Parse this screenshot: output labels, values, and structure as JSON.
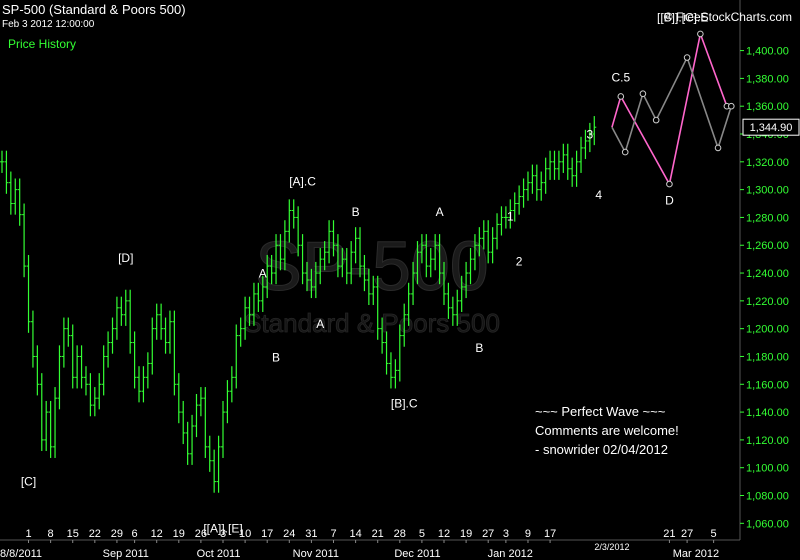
{
  "header": {
    "title": "SP-500 (Standard & Poors 500)",
    "timestamp": "Feb 3 2012 12:00:00",
    "price_history": "Price History",
    "copyright": "© FreeStockCharts.com"
  },
  "watermark": {
    "symbol": "SP-500",
    "name": "Standard & Poors 500"
  },
  "note": {
    "lines": [
      "~~~ Perfect Wave ~~~",
      "Comments are welcome!",
      "- snowrider  02/04/2012"
    ]
  },
  "colors": {
    "background": "#000000",
    "candle": "#33ff33",
    "projection_pink": "#ff66cc",
    "projection_gray": "#888888",
    "text": "#ffffff"
  },
  "chart_data": {
    "type": "bar",
    "yaxis": {
      "ticks": [
        1060,
        1080,
        1100,
        1120,
        1140,
        1160,
        1180,
        1200,
        1220,
        1240,
        1260,
        1280,
        1300,
        1320,
        1340,
        1360,
        1380,
        1400
      ],
      "tick_labels": [
        "1,060.00",
        "1,080.00",
        "1,100.00",
        "1,120.00",
        "1,140.00",
        "1,160.00",
        "1,180.00",
        "1,200.00",
        "1,220.00",
        "1,240.00",
        "1,260.00",
        "1,280.00",
        "1,300.00",
        "1,320.00",
        "1,340.00",
        "1,360.00",
        "1,380.00",
        "1,400.00"
      ],
      "range": [
        1048,
        1422
      ]
    },
    "current_price": {
      "value": 1344.9,
      "label": "1,344.90"
    },
    "xaxis": {
      "day_ticks": [
        {
          "label": "1",
          "i": 6
        },
        {
          "label": "8",
          "i": 11
        },
        {
          "label": "15",
          "i": 16
        },
        {
          "label": "22",
          "i": 21
        },
        {
          "label": "29",
          "i": 26
        },
        {
          "label": "6",
          "i": 30
        },
        {
          "label": "12",
          "i": 35
        },
        {
          "label": "19",
          "i": 40
        },
        {
          "label": "26",
          "i": 45
        },
        {
          "label": "3",
          "i": 50
        },
        {
          "label": "10",
          "i": 55
        },
        {
          "label": "17",
          "i": 60
        },
        {
          "label": "24",
          "i": 65
        },
        {
          "label": "31",
          "i": 70
        },
        {
          "label": "7",
          "i": 75
        },
        {
          "label": "14",
          "i": 80
        },
        {
          "label": "21",
          "i": 85
        },
        {
          "label": "28",
          "i": 90
        },
        {
          "label": "5",
          "i": 95
        },
        {
          "label": "12",
          "i": 100
        },
        {
          "label": "19",
          "i": 105
        },
        {
          "label": "27",
          "i": 110
        },
        {
          "label": "3",
          "i": 114
        },
        {
          "label": "9",
          "i": 119
        },
        {
          "label": "17",
          "i": 124
        },
        {
          "label": "21",
          "i": 151
        },
        {
          "label": "27",
          "i": 155
        },
        {
          "label": "5",
          "i": 161
        }
      ],
      "month_labels": [
        {
          "label": "Sep 2011",
          "i": 28
        },
        {
          "label": "Oct 2011",
          "i": 49
        },
        {
          "label": "Nov 2011",
          "i": 71
        },
        {
          "label": "Dec 2011",
          "i": 94
        },
        {
          "label": "Jan 2012",
          "i": 115
        },
        {
          "label": "2/3/2012",
          "i": 138
        },
        {
          "label": "Mar 2012",
          "i": 157
        }
      ],
      "edge_label": "8/8/2011"
    },
    "candles_close": [
      1320,
      1305,
      1290,
      1300,
      1282,
      1245,
      1205,
      1180,
      1160,
      1120,
      1140,
      1115,
      1150,
      1180,
      1200,
      1195,
      1165,
      1180,
      1165,
      1160,
      1145,
      1150,
      1160,
      1180,
      1190,
      1200,
      1215,
      1210,
      1220,
      1190,
      1165,
      1155,
      1165,
      1175,
      1200,
      1210,
      1200,
      1190,
      1205,
      1160,
      1140,
      1125,
      1110,
      1130,
      1145,
      1150,
      1115,
      1105,
      1090,
      1115,
      1140,
      1155,
      1165,
      1195,
      1200,
      1215,
      1210,
      1225,
      1220,
      1230,
      1245,
      1240,
      1260,
      1250,
      1270,
      1285,
      1280,
      1260,
      1240,
      1235,
      1230,
      1240,
      1250,
      1255,
      1270,
      1260,
      1245,
      1250,
      1240,
      1255,
      1265,
      1245,
      1235,
      1225,
      1230,
      1200,
      1190,
      1175,
      1165,
      1170,
      1195,
      1210,
      1225,
      1240,
      1255,
      1260,
      1245,
      1250,
      1260,
      1240,
      1225,
      1215,
      1210,
      1220,
      1230,
      1240,
      1250,
      1260,
      1265,
      1270,
      1255,
      1265,
      1275,
      1280,
      1280,
      1285,
      1290,
      1295,
      1300,
      1305,
      1310,
      1300,
      1305,
      1315,
      1320,
      1315,
      1320,
      1325,
      1315,
      1310,
      1320,
      1330,
      1335,
      1340,
      1344.9
    ],
    "projections": [
      {
        "name": "pink",
        "points": [
          [
            138,
            1344.9
          ],
          [
            140,
            1367
          ],
          [
            151,
            1304
          ],
          [
            158,
            1412
          ],
          [
            164,
            1360
          ]
        ]
      },
      {
        "name": "gray",
        "points": [
          [
            138,
            1344.9
          ],
          [
            141,
            1327
          ],
          [
            145,
            1369
          ],
          [
            148,
            1350
          ],
          [
            155,
            1395
          ],
          [
            162,
            1330
          ],
          [
            165,
            1360
          ]
        ]
      }
    ],
    "wave_labels": [
      {
        "text": "[C]",
        "i": 6,
        "y": 1096,
        "pos": "below"
      },
      {
        "text": "[D]",
        "i": 28,
        "y": 1245,
        "pos": "above"
      },
      {
        "text": "[[A]].[E]",
        "i": 50,
        "y": 1062,
        "pos": "below"
      },
      {
        "text": "A",
        "i": 59,
        "y": 1234,
        "pos": "above"
      },
      {
        "text": "B",
        "i": 62,
        "y": 1185,
        "pos": "below"
      },
      {
        "text": "[A].C",
        "i": 68,
        "y": 1300,
        "pos": "above"
      },
      {
        "text": "A",
        "i": 72,
        "y": 1209,
        "pos": "below"
      },
      {
        "text": "B",
        "i": 80,
        "y": 1278,
        "pos": "above"
      },
      {
        "text": "[B].C",
        "i": 91,
        "y": 1152,
        "pos": "below"
      },
      {
        "text": "A",
        "i": 99,
        "y": 1278,
        "pos": "above"
      },
      {
        "text": "B",
        "i": 108,
        "y": 1192,
        "pos": "below"
      },
      {
        "text": "1",
        "i": 115,
        "y": 1275,
        "pos": "above"
      },
      {
        "text": "2",
        "i": 117,
        "y": 1254,
        "pos": "below"
      },
      {
        "text": "3",
        "i": 133,
        "y": 1334,
        "pos": "above"
      },
      {
        "text": "4",
        "i": 135,
        "y": 1302,
        "pos": "below"
      },
      {
        "text": "C.5",
        "i": 140,
        "y": 1375,
        "pos": "above"
      },
      {
        "text": "D",
        "i": 151,
        "y": 1298,
        "pos": "below"
      },
      {
        "text": "[[B]].[C].E",
        "i": 154,
        "y": 1418,
        "pos": "above"
      }
    ]
  }
}
